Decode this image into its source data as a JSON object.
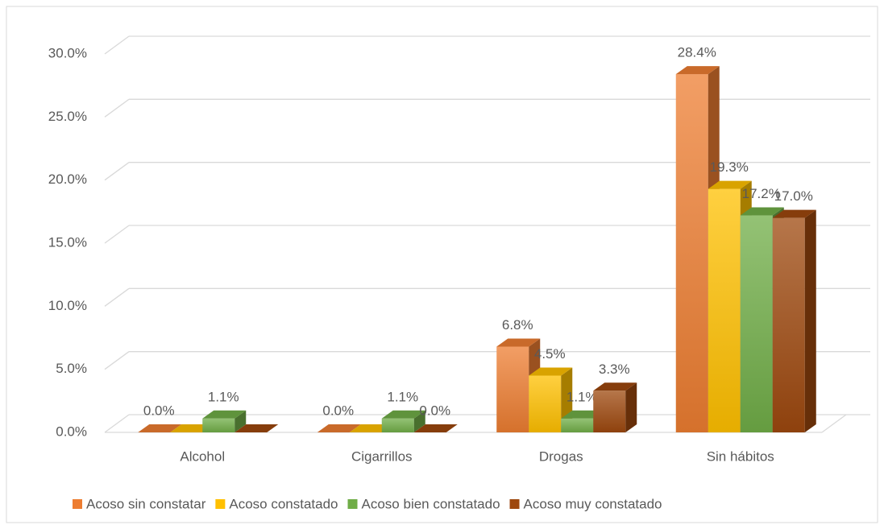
{
  "chart_data": {
    "type": "bar3d",
    "categories": [
      "Alcohol",
      "Cigarrillos",
      "Drogas",
      "Sin hábitos"
    ],
    "series": [
      {
        "name": "Acoso sin constatar",
        "color": "#ED7D31",
        "values": [
          0.0,
          0.0,
          6.8,
          28.4
        ],
        "value_labels": [
          "0.0%",
          "0.0%",
          "6.8%",
          "28.4%"
        ]
      },
      {
        "name": "Acoso constatado",
        "color": "#FFC000",
        "values": [
          0.0,
          0.0,
          4.5,
          19.3
        ],
        "value_labels": [
          null,
          null,
          "4.5%",
          "19.3%"
        ]
      },
      {
        "name": "Acoso bien constatado",
        "color": "#70AD47",
        "values": [
          1.1,
          1.1,
          1.1,
          17.2
        ],
        "value_labels": [
          "1.1%",
          "1.1%",
          "1.1%",
          "17.2%"
        ]
      },
      {
        "name": "Acoso muy constatado",
        "color": "#9E480E",
        "values": [
          0.0,
          0.0,
          3.3,
          17.0
        ],
        "value_labels": [
          null,
          "0.0%",
          "3.3%",
          "17.0%"
        ]
      }
    ],
    "ylim": [
      0,
      30
    ],
    "yticks": [
      {
        "value": 0,
        "label": "0.0%"
      },
      {
        "value": 5,
        "label": "5.0%"
      },
      {
        "value": 10,
        "label": "10.0%"
      },
      {
        "value": 15,
        "label": "15.0%"
      },
      {
        "value": 20,
        "label": "20.0%"
      },
      {
        "value": 25,
        "label": "25.0%"
      },
      {
        "value": 30,
        "label": "30.0%"
      }
    ],
    "grid": true,
    "legend": "bottom"
  }
}
